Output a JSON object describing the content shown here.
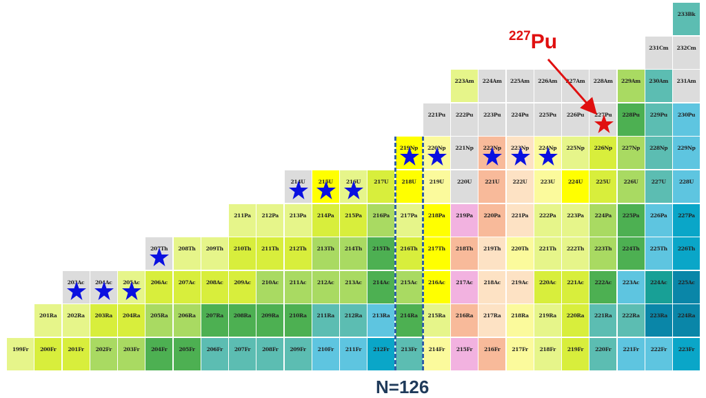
{
  "palette": {
    "g": "#dcdcdc",
    "L": "#e6f58a",
    "Y": "#d8ee3c",
    "y": "#ffff00",
    "P": "#fbfa9c",
    "G": "#a9da62",
    "D": "#4db052",
    "T": "#5cbdb2",
    "B": "#5ec5e0",
    "C": "#0aa6c8",
    "K": "#0a86a8",
    "k": "#18a096",
    "R": "#f2b2e0",
    "O": "#f8ba9a",
    "F": "#fde2c4"
  },
  "star_color": "#0a10e0",
  "highlight_color": "#e01010",
  "rows": [
    {
      "element": "Fr",
      "first_mass": 199,
      "first_n": 112,
      "colors": "LYYGGDDTTTTBBCTPROPLYTBBC"
    },
    {
      "element": "Ra",
      "first_mass": 201,
      "first_n": 113,
      "colors": "LLYYGGDDDDTTBDLOFPLYTTKK"
    },
    {
      "element": "Ac",
      "first_mass": 203,
      "first_n": 114,
      "colors": "ggLYYYYGGGGDGyRFFYYDBkK"
    },
    {
      "element": "Th",
      "first_mass": 207,
      "first_n": 117,
      "colors": "gLLYYYGGDYyOFPLLGDBC"
    },
    {
      "element": "Pa",
      "first_mass": 211,
      "first_n": 120,
      "colors": "LLLYYGLyROFLLGDBC"
    },
    {
      "element": "U",
      "first_mass": 214,
      "first_n": 122,
      "colors": "gyLYyPgOFPyYGTB"
    },
    {
      "element": "Np",
      "first_mass": 219,
      "first_n": 126,
      "colors": "yPgOFPLYGTB"
    },
    {
      "element": "Pu",
      "first_mass": 221,
      "first_n": 127,
      "colors": "gggggggDTB"
    },
    {
      "element": "Am",
      "first_mass": 223,
      "first_n": 128,
      "colors": "LgggggGTg"
    },
    {
      "element": "Cm",
      "first_mass": 231,
      "first_n": 135,
      "colors": "gg"
    },
    {
      "element": "Bk",
      "first_mass": 233,
      "first_n": 136,
      "colors": "T"
    }
  ],
  "starred_nuclides": [
    "203Ac",
    "204Ac",
    "205Ac",
    "207Th",
    "214U",
    "215U",
    "216U",
    "219Np",
    "220Np",
    "222Np",
    "223Np",
    "224Np"
  ],
  "highlighted_nuclide": "227Pu",
  "annotation": {
    "mass": "227",
    "symbol": "Pu"
  },
  "shell_closure": {
    "label": "N=126",
    "n": 126
  }
}
